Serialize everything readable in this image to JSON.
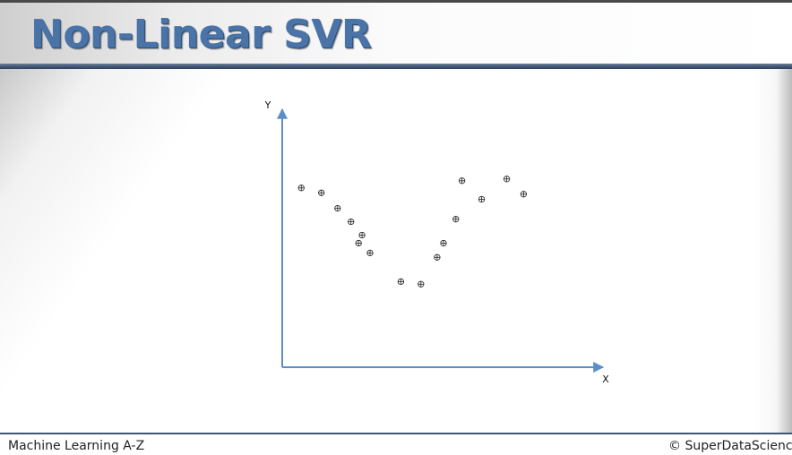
{
  "slide": {
    "title": "Non-Linear SVR",
    "footer_left": "Machine Learning A-Z",
    "footer_right": "© SuperDataScience"
  },
  "colors": {
    "title": "#4a74a8",
    "axis": "#5b8fc9",
    "rule": "#3e5573",
    "point": "#333333"
  },
  "chart_data": {
    "type": "scatter",
    "xlabel": "X",
    "ylabel": "Y",
    "xlim": [
      0,
      100
    ],
    "ylim": [
      0,
      100
    ],
    "grid": false,
    "points": [
      {
        "x": 6.0,
        "y": 69.5
      },
      {
        "x": 12.3,
        "y": 67.6
      },
      {
        "x": 17.4,
        "y": 61.6
      },
      {
        "x": 21.6,
        "y": 56.4
      },
      {
        "x": 25.1,
        "y": 51.2
      },
      {
        "x": 24.0,
        "y": 48.1
      },
      {
        "x": 27.6,
        "y": 44.3
      },
      {
        "x": 37.3,
        "y": 33.2
      },
      {
        "x": 43.6,
        "y": 32.2
      },
      {
        "x": 48.7,
        "y": 42.6
      },
      {
        "x": 50.7,
        "y": 48.1
      },
      {
        "x": 54.6,
        "y": 57.4
      },
      {
        "x": 56.5,
        "y": 72.3
      },
      {
        "x": 62.7,
        "y": 65.1
      },
      {
        "x": 70.6,
        "y": 73.0
      },
      {
        "x": 75.9,
        "y": 67.1
      }
    ]
  }
}
